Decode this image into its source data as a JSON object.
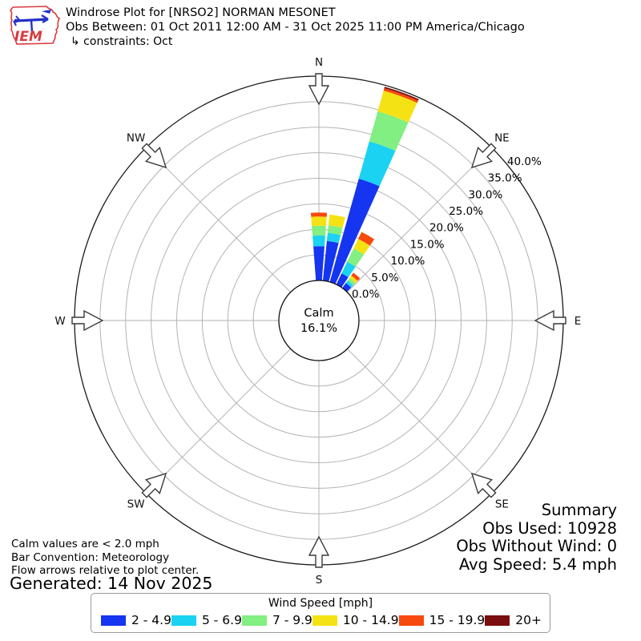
{
  "header": {
    "title": "Windrose Plot for [NRSO2] NORMAN MESONET",
    "subtitle": "Obs Between: 01 Oct 2011 12:00 AM - 31 Oct 2025 11:00 PM America/Chicago",
    "constraints": "↳ constraints: Oct",
    "logo_text": "IEM"
  },
  "chart_data": {
    "type": "windrose-polar-bar",
    "title": "Windrose Plot for [NRSO2] NORMAN MESONET",
    "units": "mph",
    "nsectors": 36,
    "bar_width_deg": 8.6,
    "convention": "Meteorology",
    "ring_step_pct": 5,
    "ring_max_pct": 40,
    "ring_labels": [
      "0.0%",
      "5.0%",
      "10.0%",
      "15.0%",
      "20.0%",
      "25.0%",
      "30.0%",
      "35.0%",
      "40.0%"
    ],
    "grid_color": "#b3b3b3",
    "speed_bins": [
      {
        "label": "2 - 4.9",
        "color": "#1535f0"
      },
      {
        "label": "5 - 6.9",
        "color": "#1bd2f2"
      },
      {
        "label": "7 - 9.9",
        "color": "#82ef82"
      },
      {
        "label": "10 - 14.9",
        "color": "#f5e214"
      },
      {
        "label": "15 - 19.9",
        "color": "#f74a0e"
      },
      {
        "label": "20+",
        "color": "#7a0e0e"
      }
    ],
    "directions": [
      {
        "dir_deg": 0,
        "values": [
          6.7,
          2.1,
          1.9,
          1.8,
          0.8,
          0.0
        ]
      },
      {
        "dir_deg": 10,
        "values": [
          7.8,
          1.6,
          1.5,
          2.1,
          0.0,
          0.0
        ]
      },
      {
        "dir_deg": 20,
        "values": [
          21.0,
          7.6,
          6.1,
          4.2,
          0.5,
          0.3
        ]
      },
      {
        "dir_deg": 30,
        "values": [
          2.4,
          2.5,
          2.9,
          2.1,
          1.5,
          0.0
        ]
      },
      {
        "dir_deg": 40,
        "values": [
          1.2,
          0.6,
          0.6,
          0.6,
          0.7,
          0.0
        ]
      }
    ],
    "compass": [
      {
        "label": "N",
        "deg": 0
      },
      {
        "label": "NE",
        "deg": 45
      },
      {
        "label": "E",
        "deg": 90
      },
      {
        "label": "SE",
        "deg": 135
      },
      {
        "label": "S",
        "deg": 180
      },
      {
        "label": "SW",
        "deg": 225
      },
      {
        "label": "W",
        "deg": 270
      },
      {
        "label": "NW",
        "deg": 315
      }
    ],
    "calm": {
      "label": "Calm",
      "value": "16.1%"
    }
  },
  "summary": {
    "title": "Summary",
    "obs_used": "Obs Used: 10928",
    "obs_without_wind": "Obs Without Wind: 0",
    "avg_speed": "Avg Speed: 5.4 mph"
  },
  "footnotes": {
    "line1": "Calm values are < 2.0 mph",
    "line2": "Bar Convention: Meteorology",
    "line3": "Flow arrows relative to plot center.",
    "generated": "Generated: 14 Nov 2025"
  },
  "legend": {
    "title": "Wind Speed [mph]",
    "items": [
      {
        "label": "2 - 4.9",
        "color": "#1535f0"
      },
      {
        "label": "5 - 6.9",
        "color": "#1bd2f2"
      },
      {
        "label": "7 - 9.9",
        "color": "#82ef82"
      },
      {
        "label": "10 - 14.9",
        "color": "#f5e214"
      },
      {
        "label": "15 - 19.9",
        "color": "#f74a0e"
      },
      {
        "label": "20+",
        "color": "#7a0e0e"
      }
    ]
  }
}
